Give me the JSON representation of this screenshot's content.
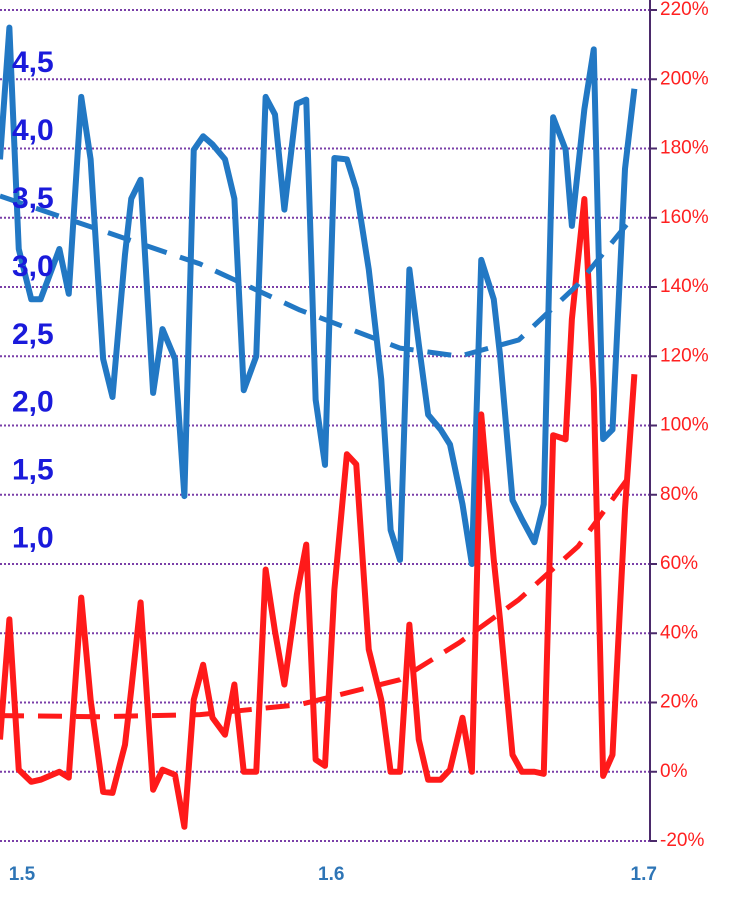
{
  "chart_data": {
    "type": "line",
    "x": [
      1.494,
      1.497,
      1.5,
      1.504,
      1.507,
      1.513,
      1.516,
      1.52,
      1.523,
      1.527,
      1.53,
      1.534,
      1.536,
      1.539,
      1.543,
      1.546,
      1.55,
      1.553,
      1.556,
      1.559,
      1.562,
      1.566,
      1.569,
      1.572,
      1.576,
      1.579,
      1.582,
      1.585,
      1.589,
      1.592,
      1.595,
      1.598,
      1.601,
      1.605,
      1.608,
      1.612,
      1.616,
      1.619,
      1.622,
      1.625,
      1.628,
      1.631,
      1.635,
      1.638,
      1.642,
      1.645,
      1.648,
      1.652,
      1.654,
      1.658,
      1.661,
      1.665,
      1.668,
      1.671,
      1.675,
      1.677,
      1.681,
      1.684,
      1.687,
      1.69,
      1.694,
      1.697
    ],
    "xlim": [
      1.494,
      1.702
    ],
    "xticks": [
      1.5,
      1.6,
      1.7
    ],
    "ylim": [
      -1.22,
      4.9
    ],
    "yticks": [
      {
        "value": 4.5,
        "label": "4,5"
      },
      {
        "value": 4.0,
        "label": "4,0"
      },
      {
        "value": 3.5,
        "label": "3,5"
      },
      {
        "value": 3.0,
        "label": "3,0"
      },
      {
        "value": 2.5,
        "label": "2,5"
      },
      {
        "value": 2.0,
        "label": "2,0"
      },
      {
        "value": 1.5,
        "label": "1,5"
      },
      {
        "value": 1.0,
        "label": "1,0"
      }
    ],
    "y2lim": [
      -20,
      220
    ],
    "y2ticks": [
      {
        "value": 220,
        "label": "220%"
      },
      {
        "value": 200,
        "label": "200%"
      },
      {
        "value": 180,
        "label": "180%"
      },
      {
        "value": 160,
        "label": "160%"
      },
      {
        "value": 140,
        "label": "140%"
      },
      {
        "value": 120,
        "label": "120%"
      },
      {
        "value": 100,
        "label": "100%"
      },
      {
        "value": 80,
        "label": "80%"
      },
      {
        "value": 60,
        "label": "60%"
      },
      {
        "value": 40,
        "label": "40%"
      },
      {
        "value": 20,
        "label": "20%"
      },
      {
        "value": 0,
        "label": "0%"
      },
      {
        "value": -20,
        "label": "-20%"
      }
    ],
    "grid": true,
    "grid_color": "#7a3fa8",
    "axis_color": "#4b2a6b",
    "series": [
      {
        "color": "#2278c4",
        "values": [
          3.8,
          4.77,
          3.14,
          2.77,
          2.77,
          3.14,
          2.81,
          4.26,
          3.8,
          2.33,
          2.05,
          3.1,
          3.51,
          3.65,
          2.08,
          2.55,
          2.33,
          1.32,
          3.87,
          3.97,
          3.91,
          3.8,
          3.51,
          2.1,
          2.35,
          4.26,
          4.13,
          3.43,
          4.21,
          4.24,
          2.03,
          1.55,
          3.81,
          3.8,
          3.58,
          2.99,
          2.18,
          1.07,
          0.85,
          2.99,
          2.44,
          1.92,
          1.81,
          1.7,
          1.26,
          0.82,
          3.06,
          2.77,
          2.36,
          1.29,
          1.15,
          0.98,
          1.26,
          4.11,
          3.87,
          3.31,
          4.17,
          4.61,
          1.74,
          1.81,
          3.73,
          4.32
        ]
      },
      {
        "color": "#ff1a1a",
        "axis": "y2",
        "values": [
          9.3,
          44.0,
          0.6,
          -2.9,
          -2.3,
          0,
          -1.7,
          50.3,
          20.8,
          -5.8,
          -6.1,
          7.8,
          23.7,
          48.9,
          -5.2,
          0.6,
          -0.9,
          -15.9,
          20.8,
          30.9,
          15.6,
          10.7,
          25.2,
          0,
          0,
          58.4,
          40.5,
          25.2,
          51.2,
          65.6,
          3.5,
          1.7,
          52.6,
          91.7,
          88.8,
          35.3,
          20.8,
          0,
          0,
          42.5,
          9.3,
          -2.3,
          -2.3,
          0.6,
          15.6,
          0,
          103.2,
          61.3,
          44.0,
          4.9,
          0,
          0,
          -0.6,
          97.2,
          96.0,
          130.7,
          165.4,
          110.5,
          -1.2,
          4.9,
          75.8,
          114.8
        ]
      },
      {
        "color": "#2278c4",
        "dash": true,
        "x": [
          1.494,
          1.526,
          1.558,
          1.59,
          1.622,
          1.641,
          1.66,
          1.679,
          1.697
        ],
        "values": [
          3.53,
          3.28,
          3.03,
          2.69,
          2.41,
          2.35,
          2.47,
          2.88,
          3.39
        ]
      },
      {
        "color": "#ff1a1a",
        "dash": true,
        "axis": "y2",
        "x": [
          1.494,
          1.526,
          1.558,
          1.59,
          1.622,
          1.641,
          1.66,
          1.679,
          1.697
        ],
        "values": [
          16.2,
          15.9,
          16.5,
          19.4,
          26.6,
          37.3,
          49.7,
          65.1,
          87.3
        ]
      }
    ]
  }
}
